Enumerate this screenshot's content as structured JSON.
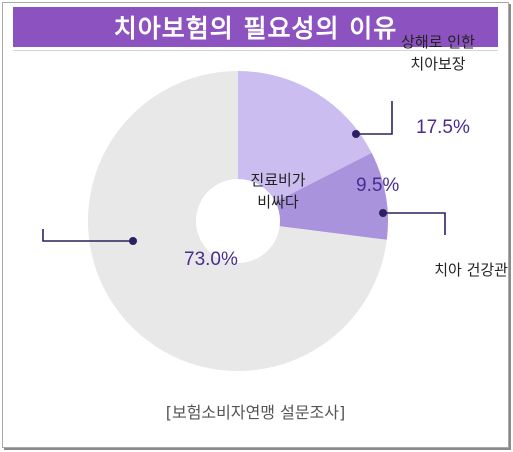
{
  "title": "치아보험의 필요성의 이유",
  "source": "[보험소비자연맹 설문조사]",
  "colors": {
    "title_bg": "#8c52c0",
    "value_text": "#4a2b8f",
    "leader": "#2e2060"
  },
  "chart_data": {
    "type": "pie",
    "style": "donut",
    "start_angle_deg": 0,
    "direction": "clockwise",
    "slices": [
      {
        "label": [
          "상해로 인한",
          "치아보장"
        ],
        "value": 17.5,
        "value_text": "17.5%",
        "color": "#cbbdf0"
      },
      {
        "label": [
          "치아 건강관리"
        ],
        "value": 9.5,
        "value_text": "9.5%",
        "color": "#a993dd"
      },
      {
        "label": [
          "진료비가",
          "비싸다"
        ],
        "value": 73.0,
        "value_text": "73.0%",
        "color": "#e8e8e8"
      }
    ]
  }
}
